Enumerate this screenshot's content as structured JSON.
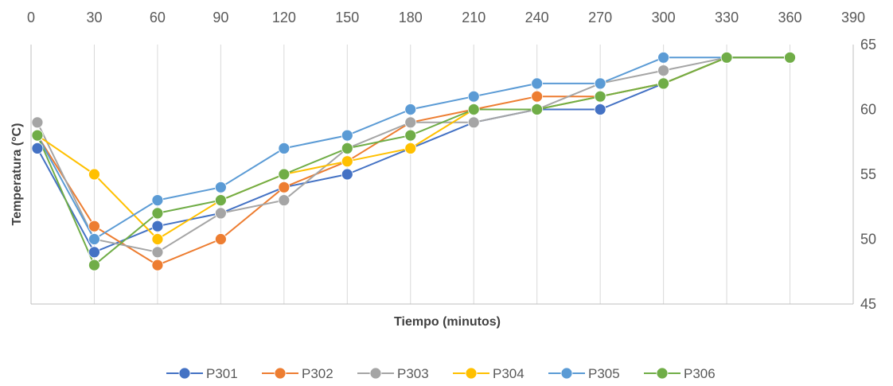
{
  "chart_data": {
    "type": "line",
    "xlabel": "Tiempo (minutos)",
    "ylabel": "Temperatura (°C)",
    "xlim": [
      0,
      390
    ],
    "ylim": [
      45,
      65
    ],
    "x_ticks": [
      0,
      30,
      60,
      90,
      120,
      150,
      180,
      210,
      240,
      270,
      300,
      330,
      360,
      390
    ],
    "y_ticks": [
      45,
      50,
      55,
      60,
      65
    ],
    "x_axis_position": "top",
    "y_axis_position": "right",
    "grid": "vertical",
    "legend_position": "bottom",
    "series": [
      {
        "name": "P301",
        "color": "#4472C4",
        "x": [
          3,
          30,
          60,
          90,
          120,
          150,
          180,
          210,
          240,
          270,
          300,
          330,
          360
        ],
        "values": [
          57,
          49,
          51,
          52,
          54,
          55,
          57,
          59,
          60,
          60,
          62,
          64,
          64
        ]
      },
      {
        "name": "P302",
        "color": "#ED7D31",
        "x": [
          3,
          30,
          60,
          90,
          120,
          150,
          180,
          210,
          240,
          270,
          300,
          330,
          360
        ],
        "values": [
          58,
          51,
          48,
          50,
          54,
          56,
          59,
          60,
          61,
          61,
          62,
          64,
          64
        ]
      },
      {
        "name": "P303",
        "color": "#A5A5A5",
        "x": [
          3,
          30,
          60,
          90,
          120,
          150,
          180,
          210,
          240,
          270,
          300,
          330,
          360
        ],
        "values": [
          59,
          50,
          49,
          52,
          53,
          57,
          59,
          59,
          60,
          62,
          63,
          64,
          64
        ]
      },
      {
        "name": "P304",
        "color": "#FFC000",
        "x": [
          3,
          30,
          60,
          90,
          120,
          150,
          180,
          210,
          240,
          270,
          300,
          330,
          360
        ],
        "values": [
          58,
          55,
          50,
          53,
          55,
          56,
          57,
          60,
          60,
          61,
          62,
          64,
          64
        ]
      },
      {
        "name": "P305",
        "color": "#5B9BD5",
        "x": [
          3,
          30,
          60,
          90,
          120,
          150,
          180,
          210,
          240,
          270,
          300,
          330,
          360
        ],
        "values": [
          58,
          50,
          53,
          54,
          57,
          58,
          60,
          61,
          62,
          62,
          64,
          64,
          64
        ]
      },
      {
        "name": "P306",
        "color": "#70AD47",
        "x": [
          3,
          30,
          60,
          90,
          120,
          150,
          180,
          210,
          240,
          270,
          300,
          330,
          360
        ],
        "values": [
          58,
          48,
          52,
          53,
          55,
          57,
          58,
          60,
          60,
          61,
          62,
          64,
          64
        ]
      }
    ]
  }
}
